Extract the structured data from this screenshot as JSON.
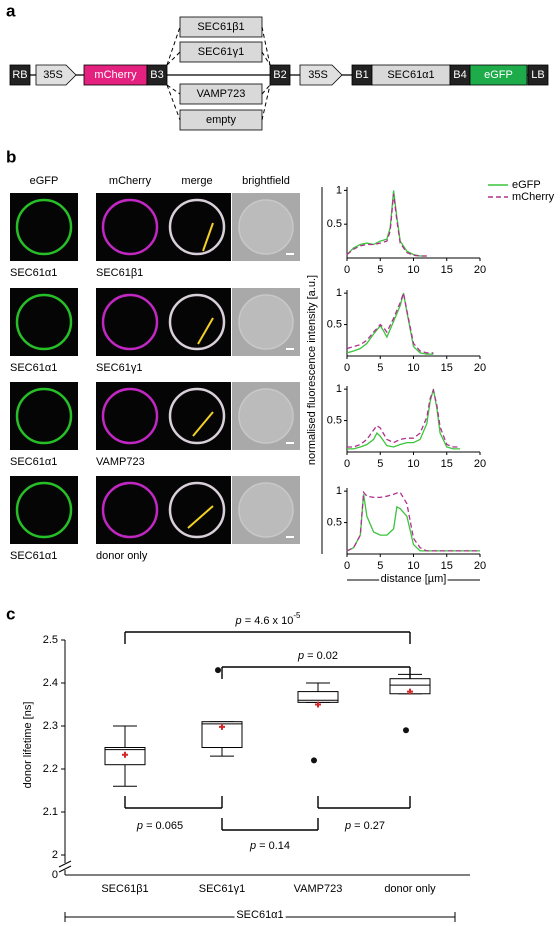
{
  "panel_labels": [
    "a",
    "b",
    "c"
  ],
  "construct": {
    "left": [
      "RB",
      "35S",
      "mCherry",
      "B3"
    ],
    "inserts": [
      "SEC61β1",
      "SEC61γ1",
      "VAMP723",
      "empty"
    ],
    "right": [
      "B2",
      "35S",
      "B1",
      "SEC61α1",
      "B4",
      "eGFP",
      "LB"
    ]
  },
  "images": {
    "headers": [
      "eGFP",
      "mCherry",
      "merge",
      "brightfield"
    ],
    "rows": [
      [
        "SEC61α1",
        "SEC61β1"
      ],
      [
        "SEC61α1",
        "SEC61γ1"
      ],
      [
        "SEC61α1",
        "VAMP723"
      ],
      [
        "SEC61α1",
        "donor only"
      ]
    ]
  },
  "chart_data": [
    {
      "type": "line",
      "ylabel": "normalised fluorescence intensity [a.u.]",
      "x": [
        0,
        1,
        2,
        3,
        4,
        5,
        6,
        6.5,
        7,
        7.5,
        8,
        9,
        10,
        11,
        12
      ],
      "series": [
        {
          "name": "eGFP",
          "color": "#3cc43c",
          "dash": false,
          "values": [
            0.05,
            0.15,
            0.2,
            0.22,
            0.2,
            0.25,
            0.28,
            0.45,
            1.0,
            0.6,
            0.25,
            0.1,
            0.05,
            0.03,
            0.03
          ]
        },
        {
          "name": "mCherry",
          "color": "#b0308f",
          "dash": true,
          "values": [
            0.05,
            0.13,
            0.18,
            0.2,
            0.2,
            0.22,
            0.25,
            0.4,
            0.95,
            0.55,
            0.22,
            0.08,
            0.04,
            0.03,
            0.03
          ]
        }
      ],
      "xlim": [
        0,
        20
      ],
      "xticks": [
        0,
        5,
        10,
        15,
        20
      ],
      "ylim": [
        0,
        1.05
      ],
      "yticks": [
        0.5,
        1
      ]
    },
    {
      "type": "line",
      "x": [
        0,
        1,
        2,
        3,
        4,
        5,
        5.5,
        6,
        7,
        8,
        8.5,
        9,
        10,
        11,
        12,
        13
      ],
      "series": [
        {
          "color": "#3cc43c",
          "dash": false,
          "values": [
            0.05,
            0.08,
            0.12,
            0.2,
            0.35,
            0.48,
            0.4,
            0.3,
            0.55,
            0.8,
            1.0,
            0.7,
            0.15,
            0.05,
            0.03,
            0.03
          ]
        },
        {
          "color": "#b0308f",
          "dash": true,
          "values": [
            0.12,
            0.15,
            0.18,
            0.25,
            0.38,
            0.5,
            0.45,
            0.38,
            0.6,
            0.85,
            1.0,
            0.72,
            0.2,
            0.08,
            0.05,
            0.05
          ]
        }
      ],
      "xlim": [
        0,
        20
      ],
      "xticks": [
        0,
        5,
        10,
        15,
        20
      ],
      "ylim": [
        0,
        1.05
      ],
      "yticks": [
        0.5,
        1
      ]
    },
    {
      "type": "line",
      "x": [
        0,
        1,
        2,
        3,
        4,
        4.5,
        5,
        6,
        7,
        8,
        9,
        10,
        11,
        12,
        12.5,
        13,
        13.5,
        14,
        15,
        16,
        17
      ],
      "series": [
        {
          "color": "#3cc43c",
          "dash": false,
          "values": [
            0.05,
            0.05,
            0.08,
            0.12,
            0.2,
            0.3,
            0.25,
            0.1,
            0.08,
            0.12,
            0.15,
            0.15,
            0.2,
            0.45,
            0.8,
            1.0,
            0.7,
            0.3,
            0.08,
            0.05,
            0.05
          ]
        },
        {
          "color": "#b0308f",
          "dash": true,
          "values": [
            0.08,
            0.08,
            0.12,
            0.2,
            0.35,
            0.42,
            0.38,
            0.2,
            0.15,
            0.2,
            0.22,
            0.22,
            0.3,
            0.55,
            0.85,
            0.98,
            0.75,
            0.4,
            0.12,
            0.08,
            0.08
          ]
        }
      ],
      "xlim": [
        0,
        20
      ],
      "xticks": [
        0,
        5,
        10,
        15,
        20
      ],
      "ylim": [
        0,
        1.05
      ],
      "yticks": [
        0.5,
        1
      ]
    },
    {
      "type": "line",
      "xlabel": "distance [µm]",
      "x": [
        0,
        1,
        2,
        2.5,
        3,
        4,
        5,
        6,
        7,
        7.5,
        8,
        9,
        10,
        11,
        12,
        13,
        14,
        15,
        16,
        17,
        18,
        19,
        20
      ],
      "series": [
        {
          "color": "#3cc43c",
          "dash": false,
          "values": [
            0.05,
            0.1,
            0.3,
            0.95,
            0.6,
            0.35,
            0.3,
            0.3,
            0.4,
            0.75,
            0.72,
            0.6,
            0.15,
            0.05,
            0.05,
            0.05,
            0.05,
            0.05,
            0.05,
            0.05,
            0.05,
            0.05,
            0.05
          ]
        },
        {
          "color": "#b0308f",
          "dash": true,
          "values": [
            0.05,
            0.1,
            0.3,
            0.98,
            0.92,
            0.9,
            0.9,
            0.92,
            0.95,
            0.97,
            0.98,
            0.8,
            0.25,
            0.1,
            0.05,
            0.05,
            0.05,
            0.05,
            0.05,
            0.05,
            0.05,
            0.05,
            0.05
          ]
        }
      ],
      "xlim": [
        0,
        20
      ],
      "xticks": [
        0,
        5,
        10,
        15,
        20
      ],
      "ylim": [
        0,
        1.05
      ],
      "yticks": [
        0.5,
        1
      ]
    },
    {
      "type": "box",
      "ylabel": "donor lifetime [ns]",
      "categories": [
        "SEC61β1",
        "SEC61γ1",
        "VAMP723",
        "donor only"
      ],
      "group_label": "SEC61α1",
      "boxes": [
        {
          "whislo": 2.16,
          "q1": 2.21,
          "med": 2.245,
          "q3": 2.25,
          "whishi": 2.3,
          "mean": 2.233,
          "fliers": []
        },
        {
          "whislo": 2.23,
          "q1": 2.25,
          "med": 2.305,
          "q3": 2.31,
          "whishi": 2.31,
          "mean": 2.298,
          "fliers": [
            2.43
          ]
        },
        {
          "whislo": 2.355,
          "q1": 2.355,
          "med": 2.36,
          "q3": 2.38,
          "whishi": 2.4,
          "mean": 2.35,
          "fliers": [
            2.22
          ]
        },
        {
          "whislo": 2.375,
          "q1": 2.375,
          "med": 2.395,
          "q3": 2.41,
          "whishi": 2.42,
          "mean": 2.38,
          "fliers": [
            2.29
          ]
        }
      ],
      "box_color": "#000000",
      "mean_color": "#d62728",
      "ylim": [
        2.0,
        2.5
      ],
      "yticks": [
        2.0,
        2.1,
        2.2,
        2.3,
        2.4,
        2.5
      ],
      "ybreak_tick": 0,
      "p_symbol": "p",
      "comparisons": [
        {
          "label": " = 4.6 x 10",
          "sup": "-5"
        },
        {
          "label": " = 0.02"
        },
        {
          "label": " = 0.065"
        },
        {
          "label": " = 0.14"
        },
        {
          "label": " = 0.27"
        }
      ]
    }
  ]
}
